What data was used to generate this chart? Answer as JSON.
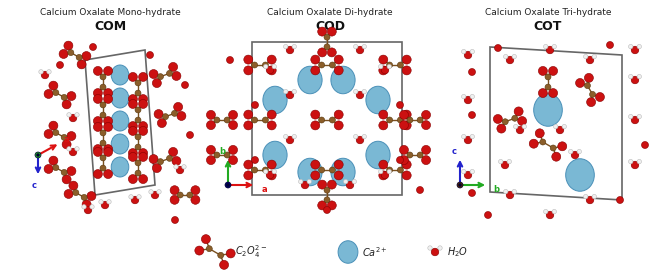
{
  "title1": [
    "Calcium Oxalate Mono-hydrate",
    "Calcium Oxalate Di-hydrate",
    "Calcium Oxalate Tri-hydrate"
  ],
  "title2": [
    "COM",
    "COD",
    "COT"
  ],
  "bg": "#ffffff",
  "ca_color": "#7ab8d4",
  "ca_ec": "#4a90b8",
  "o_color": "#cc1111",
  "o_ec": "#880000",
  "c_color": "#8B5E2A",
  "c_ec": "#5a3a10",
  "h_color": "#f0f0f0",
  "h_ec": "#bbbbbb",
  "bond_color": "#7a5020",
  "ax_red": "#dd1111",
  "ax_green": "#22aa22",
  "ax_blue": "#2222cc"
}
